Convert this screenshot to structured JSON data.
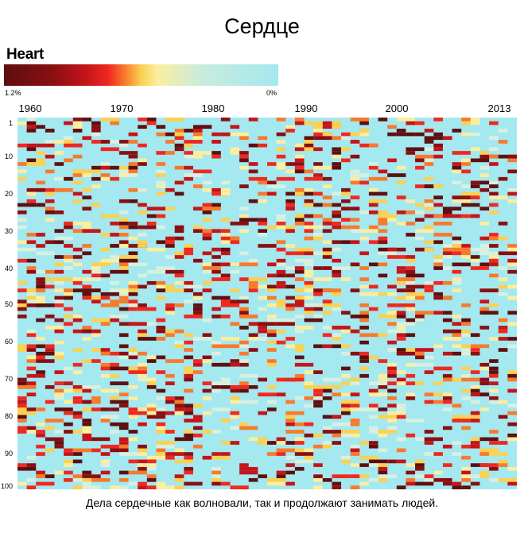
{
  "title": "Сердце",
  "legend": {
    "label": "Heart",
    "min_label": "1.2%",
    "max_label": "0%",
    "colors": [
      "#5e0f0f",
      "#8a0f12",
      "#c4151a",
      "#ef2820",
      "#f77a2c",
      "#fbd150",
      "#fbeea0",
      "#c8ecdc",
      "#a4e8f0"
    ]
  },
  "x_tick_labels": [
    "1960",
    "1970",
    "1980",
    "1990",
    "2000",
    "2013"
  ],
  "y_tick_labels": [
    "1",
    "10",
    "20",
    "30",
    "40",
    "50",
    "60",
    "70",
    "80",
    "90",
    "100"
  ],
  "caption": "Дела сердечные как волновали, так и продолжают занимать людей.",
  "chart_data": {
    "type": "heatmap",
    "title": "Сердце",
    "legend_label": "Heart",
    "x_range": [
      1960,
      2013
    ],
    "y_range": [
      1,
      100
    ],
    "value_range": [
      0,
      1.2
    ],
    "value_unit": "%",
    "background_value": 0,
    "cells_note_values": [
      1.2,
      0.9,
      0.7,
      0.5,
      0.3
    ],
    "sample_seed": 7
  }
}
